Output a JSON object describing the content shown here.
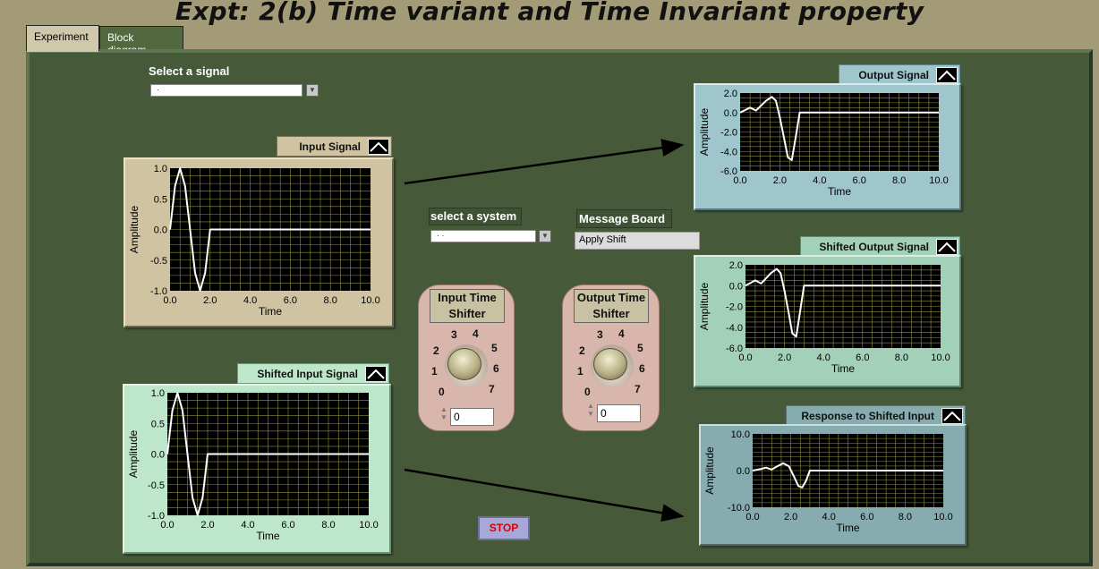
{
  "title": "Expt: 2(b) Time variant and Time Invariant property",
  "tabs": [
    {
      "label": "Experiment"
    },
    {
      "label": "Block diagram"
    }
  ],
  "select_signal": {
    "label": "Select a signal",
    "value": "·"
  },
  "select_system": {
    "label": "select a system",
    "value": "·  ·"
  },
  "message_board": {
    "label": "Message Board",
    "value": "Apply Shift"
  },
  "input_shifter": {
    "label_line1": "Input Time",
    "label_line2": "Shifter",
    "value": "0",
    "dial_labels": [
      "0",
      "1",
      "2",
      "3",
      "4",
      "5",
      "6",
      "7"
    ]
  },
  "output_shifter": {
    "label_line1": "Output Time",
    "label_line2": "Shifter",
    "value": "0",
    "dial_labels": [
      "0",
      "1",
      "2",
      "3",
      "4",
      "5",
      "6",
      "7"
    ]
  },
  "stop_button": {
    "label": "STOP"
  },
  "colors": {
    "input_frame": "#cfc3a1",
    "shifted_input_frame": "#bde6cb",
    "output_frame": "#9fc6cd",
    "shifted_output_frame": "#a3d0b8",
    "response_frame": "#86acaf",
    "trace": "#ffffff",
    "grid": "#8f8f3c"
  },
  "graphs": {
    "input": {
      "title": "Input Signal",
      "ylabel": "Amplitude",
      "xlabel": "Time",
      "xticks": [
        "0.0",
        "2.0",
        "4.0",
        "6.0",
        "8.0",
        "10.0"
      ],
      "yticks": [
        "1.0",
        "0.5",
        "0.0",
        "-0.5",
        "-1.0"
      ]
    },
    "shifted_input": {
      "title": "Shifted Input Signal",
      "ylabel": "Amplitude",
      "xlabel": "Time",
      "xticks": [
        "0.0",
        "2.0",
        "4.0",
        "6.0",
        "8.0",
        "10.0"
      ],
      "yticks": [
        "1.0",
        "0.5",
        "0.0",
        "-0.5",
        "-1.0"
      ]
    },
    "output": {
      "title": "Output Signal",
      "ylabel": "Amplitude",
      "xlabel": "Time",
      "xticks": [
        "0.0",
        "2.0",
        "4.0",
        "6.0",
        "8.0",
        "10.0"
      ],
      "yticks": [
        "2.0",
        "0.0",
        "-2.0",
        "-4.0",
        "-6.0"
      ]
    },
    "shifted_output": {
      "title": "Shifted Output Signal",
      "ylabel": "Amplitude",
      "xlabel": "Time",
      "xticks": [
        "0.0",
        "2.0",
        "4.0",
        "6.0",
        "8.0",
        "10.0"
      ],
      "yticks": [
        "2.0",
        "0.0",
        "-2.0",
        "-4.0",
        "-6.0"
      ]
    },
    "response": {
      "title": "Response to Shifted Input",
      "ylabel": "Amplitude",
      "xlabel": "Time",
      "xticks": [
        "0.0",
        "2.0",
        "4.0",
        "6.0",
        "8.0",
        "10.0"
      ],
      "yticks": [
        "10.0",
        "0.0",
        "-10.0"
      ]
    }
  },
  "chart_data": [
    {
      "type": "line",
      "title": "Input Signal",
      "xlabel": "Time",
      "ylabel": "Amplitude",
      "xlim": [
        0,
        10
      ],
      "ylim": [
        -1,
        1
      ],
      "x": [
        0,
        0.25,
        0.5,
        0.75,
        1.0,
        1.25,
        1.5,
        1.75,
        2.0,
        2.5,
        10
      ],
      "y": [
        0,
        0.71,
        1.0,
        0.71,
        0,
        -0.71,
        -1.0,
        -0.71,
        0,
        0,
        0
      ]
    },
    {
      "type": "line",
      "title": "Shifted Input Signal",
      "xlabel": "Time",
      "ylabel": "Amplitude",
      "xlim": [
        0,
        10
      ],
      "ylim": [
        -1,
        1
      ],
      "x": [
        0,
        0.25,
        0.5,
        0.75,
        1.0,
        1.25,
        1.5,
        1.75,
        2.0,
        2.5,
        10
      ],
      "y": [
        0,
        0.71,
        1.0,
        0.71,
        0,
        -0.71,
        -1.0,
        -0.71,
        0,
        0,
        0
      ]
    },
    {
      "type": "line",
      "title": "Output Signal",
      "xlabel": "Time",
      "ylabel": "Amplitude",
      "xlim": [
        0,
        10
      ],
      "ylim": [
        -6,
        2
      ],
      "x": [
        0,
        0.3,
        0.5,
        0.8,
        1.0,
        1.3,
        1.6,
        1.8,
        2.0,
        2.2,
        2.4,
        2.6,
        2.8,
        3.0,
        3.2,
        10
      ],
      "y": [
        0,
        0.3,
        0.5,
        0.2,
        0.6,
        1.2,
        1.6,
        1.2,
        -0.5,
        -2.5,
        -4.6,
        -4.9,
        -2.5,
        0,
        0,
        0
      ]
    },
    {
      "type": "line",
      "title": "Shifted Output Signal",
      "xlabel": "Time",
      "ylabel": "Amplitude",
      "xlim": [
        0,
        10
      ],
      "ylim": [
        -6,
        2
      ],
      "x": [
        0,
        0.3,
        0.5,
        0.8,
        1.0,
        1.3,
        1.6,
        1.8,
        2.0,
        2.2,
        2.4,
        2.6,
        2.8,
        3.0,
        3.2,
        10
      ],
      "y": [
        0,
        0.3,
        0.5,
        0.2,
        0.6,
        1.2,
        1.6,
        1.2,
        -0.5,
        -2.5,
        -4.6,
        -4.9,
        -2.5,
        0,
        0,
        0
      ]
    },
    {
      "type": "line",
      "title": "Response to Shifted Input",
      "xlabel": "Time",
      "ylabel": "Amplitude",
      "xlim": [
        0,
        10
      ],
      "ylim": [
        -10,
        10
      ],
      "x": [
        0,
        0.4,
        0.7,
        1.0,
        1.3,
        1.6,
        1.9,
        2.2,
        2.4,
        2.6,
        2.8,
        3.0,
        3.2,
        10
      ],
      "y": [
        0,
        0.4,
        0.8,
        0.3,
        1.2,
        2.0,
        1.2,
        -2.0,
        -4.2,
        -4.6,
        -2.8,
        0,
        0,
        0
      ]
    }
  ]
}
